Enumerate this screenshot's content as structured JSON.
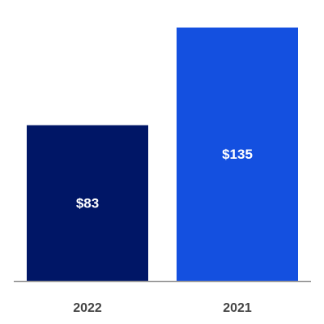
{
  "chart_data": {
    "type": "bar",
    "categories": [
      "2022",
      "2021"
    ],
    "values": [
      83,
      135
    ],
    "data_labels": [
      "$83",
      "$135"
    ],
    "colors": [
      "#001666",
      "#1450E0"
    ],
    "axis_color": "#999999",
    "tick_label_color": "#444444",
    "data_label_color": "#ffffff",
    "ylim": [
      0,
      135
    ],
    "grid": false,
    "legend": "none"
  }
}
